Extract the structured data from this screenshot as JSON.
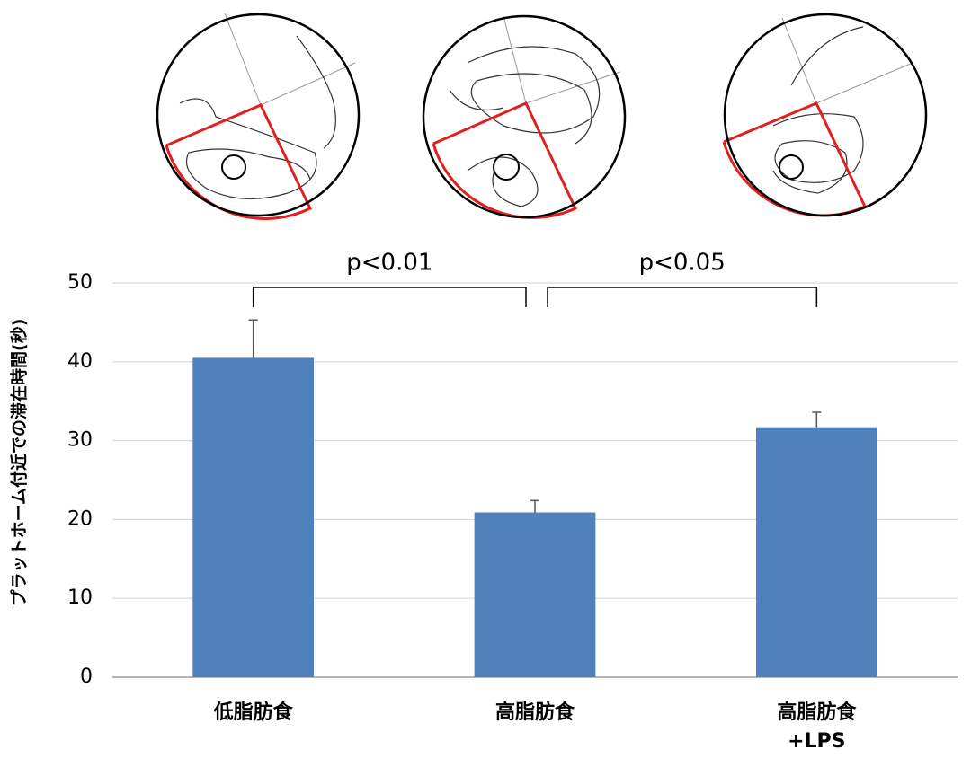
{
  "chart_data": {
    "type": "bar",
    "y_label": "プラットホーム付近での滞在時間(秒)",
    "categories": [
      "低脂肪食",
      "高脂肪食",
      "高脂肪食\n+LPS"
    ],
    "values": [
      40.5,
      20.9,
      31.7
    ],
    "errors": [
      4.8,
      1.5,
      1.9
    ],
    "color": "#4f81bd",
    "ylim": [
      0,
      50
    ],
    "yticks": [
      0,
      10,
      20,
      30,
      40,
      50
    ],
    "grid": true,
    "annotations": [
      "p<0.01",
      "p<0.05"
    ]
  }
}
